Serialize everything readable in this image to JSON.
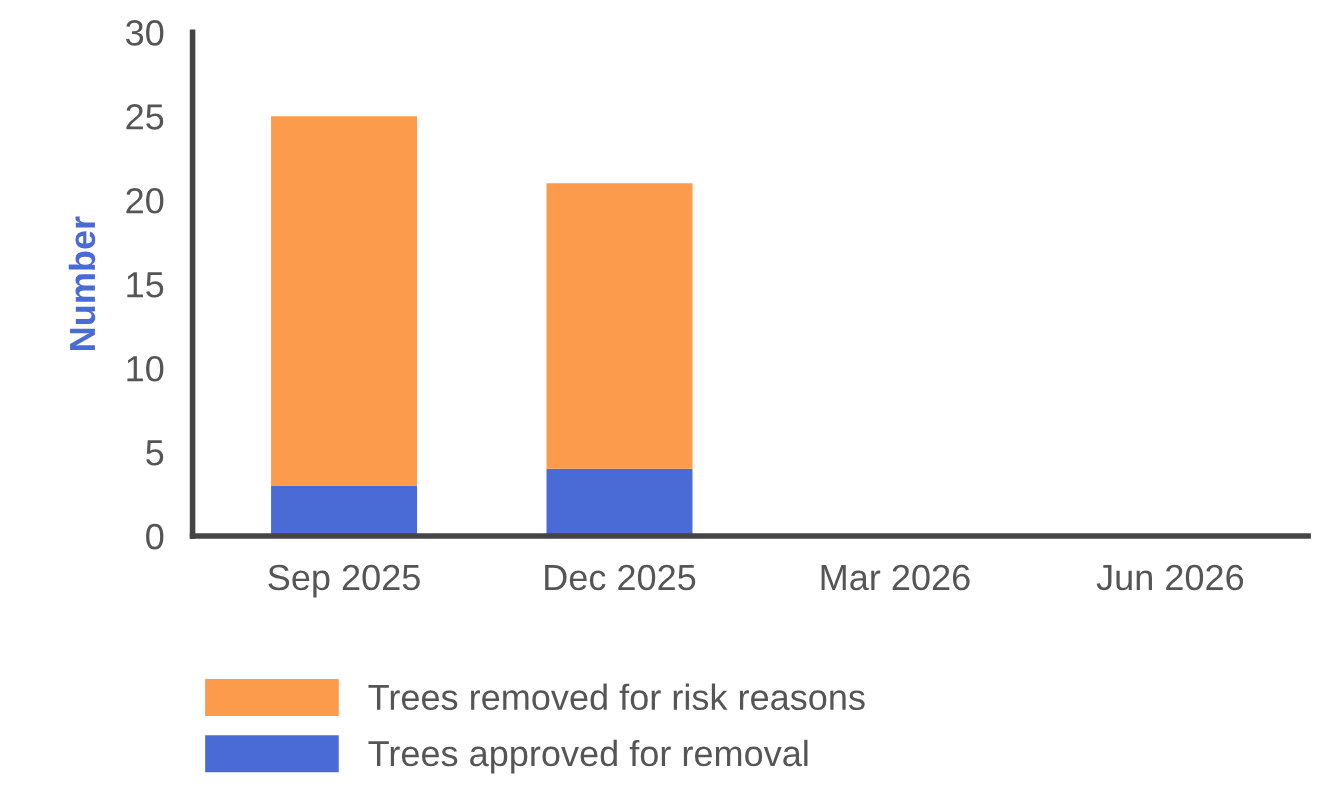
{
  "chart_data": {
    "type": "bar",
    "stacked": true,
    "ylabel": "Number",
    "categories": [
      "Sep 2025",
      "Dec 2025",
      "Mar 2026",
      "Jun 2026"
    ],
    "series": [
      {
        "name": "Trees approved for removal",
        "color": "#4a6bd6",
        "values": [
          3,
          4,
          0,
          0
        ]
      },
      {
        "name": "Trees removed for risk reasons",
        "color": "#fb9b4b",
        "values": [
          22,
          17,
          0,
          0
        ]
      }
    ],
    "ylim": [
      0,
      30
    ],
    "yticks": [
      0,
      5,
      10,
      15,
      20,
      25,
      30
    ],
    "grid": false,
    "legend": "bottom left"
  }
}
